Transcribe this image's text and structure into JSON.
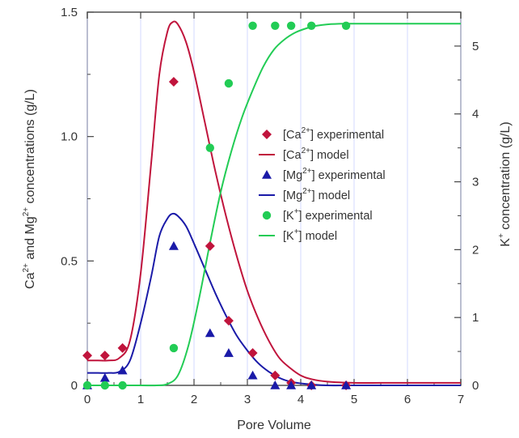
{
  "chart_data": {
    "type": "line",
    "xlabel": "Pore Volume",
    "ylabel_left": {
      "parts": [
        "Ca",
        "2+",
        " and Mg",
        "2+",
        " concentrations (g/L)"
      ]
    },
    "ylabel_right": {
      "parts": [
        "K",
        "+",
        " concentration (g/L)"
      ]
    },
    "xlim": [
      0,
      7
    ],
    "ylim_left": [
      0,
      1.5
    ],
    "ylim_right": [
      0,
      5.5
    ],
    "x_ticks": [
      "0",
      "1",
      "2",
      "3",
      "4",
      "5",
      "6",
      "7"
    ],
    "y_left_ticks": [
      "0",
      "0.5",
      "1.0",
      "1.5"
    ],
    "y_right_ticks": [
      "0",
      "1",
      "2",
      "3",
      "4",
      "5"
    ],
    "grid": "vertical",
    "legend_position": "center-right",
    "series": [
      {
        "key": "ca_exp",
        "legend": [
          "[Ca",
          "2+",
          "] experimental"
        ],
        "kind": "markers",
        "marker": "diamond",
        "color": "#c0143c",
        "axis": "left",
        "x": [
          0,
          0.33,
          0.66,
          1.62,
          2.3,
          2.65,
          3.1,
          3.52,
          3.82,
          4.2,
          4.85
        ],
        "y": [
          0.12,
          0.12,
          0.15,
          1.22,
          0.56,
          0.26,
          0.13,
          0.04,
          0.01,
          0.0,
          0.0
        ]
      },
      {
        "key": "ca_model",
        "legend": [
          "[Ca",
          "2+",
          "] model"
        ],
        "kind": "line",
        "color": "#c0143c",
        "axis": "left",
        "x": [
          0,
          0.2,
          0.4,
          0.6,
          0.8,
          1.0,
          1.2,
          1.35,
          1.5,
          1.6,
          1.7,
          1.85,
          2.0,
          2.2,
          2.4,
          2.6,
          2.8,
          3.0,
          3.2,
          3.4,
          3.6,
          3.8,
          4.0,
          4.2,
          4.5,
          5.0,
          5.5,
          6.0,
          6.5,
          7.0
        ],
        "y": [
          0.1,
          0.1,
          0.1,
          0.11,
          0.18,
          0.45,
          0.9,
          1.25,
          1.42,
          1.46,
          1.45,
          1.38,
          1.26,
          1.06,
          0.86,
          0.68,
          0.52,
          0.38,
          0.27,
          0.18,
          0.11,
          0.07,
          0.04,
          0.025,
          0.015,
          0.01,
          0.01,
          0.01,
          0.01,
          0.01
        ]
      },
      {
        "key": "mg_exp",
        "legend": [
          "[Mg",
          "2+",
          "] experimental"
        ],
        "kind": "markers",
        "marker": "triangle",
        "color": "#1a1aa8",
        "axis": "left",
        "x": [
          0,
          0.33,
          0.66,
          1.62,
          2.3,
          2.65,
          3.1,
          3.52,
          3.82,
          4.2,
          4.85
        ],
        "y": [
          0.0,
          0.03,
          0.06,
          0.56,
          0.21,
          0.13,
          0.04,
          0.0,
          0.0,
          0.0,
          0.0
        ]
      },
      {
        "key": "mg_model",
        "legend": [
          "[Mg",
          "2+",
          "] model"
        ],
        "kind": "line",
        "color": "#1a1aa8",
        "axis": "left",
        "x": [
          0,
          0.2,
          0.4,
          0.6,
          0.8,
          1.0,
          1.2,
          1.35,
          1.5,
          1.6,
          1.7,
          1.85,
          2.0,
          2.2,
          2.4,
          2.6,
          2.8,
          3.0,
          3.2,
          3.4,
          3.6,
          3.8,
          4.0,
          4.2,
          4.5,
          5.0,
          5.5,
          6.0,
          6.5,
          7.0
        ],
        "y": [
          0.05,
          0.05,
          0.05,
          0.055,
          0.1,
          0.25,
          0.44,
          0.6,
          0.67,
          0.69,
          0.68,
          0.64,
          0.57,
          0.47,
          0.37,
          0.28,
          0.2,
          0.14,
          0.09,
          0.055,
          0.03,
          0.015,
          0.008,
          0.004,
          0.0,
          0.0,
          0.0,
          0.0,
          0.0,
          0.0
        ]
      },
      {
        "key": "k_exp",
        "legend": [
          "[K",
          "+",
          "] experimental"
        ],
        "kind": "markers",
        "marker": "circle",
        "color": "#22cc55",
        "axis": "right",
        "x": [
          0,
          0.33,
          0.66,
          1.62,
          2.3,
          2.65,
          3.1,
          3.52,
          3.82,
          4.2,
          4.85
        ],
        "y": [
          0.0,
          0.0,
          0.0,
          0.55,
          3.5,
          4.45,
          5.3,
          5.3,
          5.3,
          5.3,
          5.3
        ]
      },
      {
        "key": "k_model",
        "legend": [
          "[K",
          "+",
          "] model"
        ],
        "kind": "line",
        "color": "#22cc55",
        "axis": "right",
        "x": [
          0,
          0.5,
          1.0,
          1.3,
          1.5,
          1.7,
          1.9,
          2.1,
          2.3,
          2.5,
          2.7,
          2.9,
          3.1,
          3.3,
          3.5,
          3.7,
          3.9,
          4.1,
          4.3,
          4.5,
          4.8,
          5.2,
          6.0,
          7.0
        ],
        "y": [
          0.0,
          0.0,
          0.0,
          0.0,
          0.02,
          0.15,
          0.6,
          1.3,
          2.1,
          2.85,
          3.45,
          3.95,
          4.35,
          4.7,
          4.95,
          5.1,
          5.2,
          5.26,
          5.3,
          5.32,
          5.33,
          5.33,
          5.33,
          5.33
        ]
      }
    ]
  }
}
